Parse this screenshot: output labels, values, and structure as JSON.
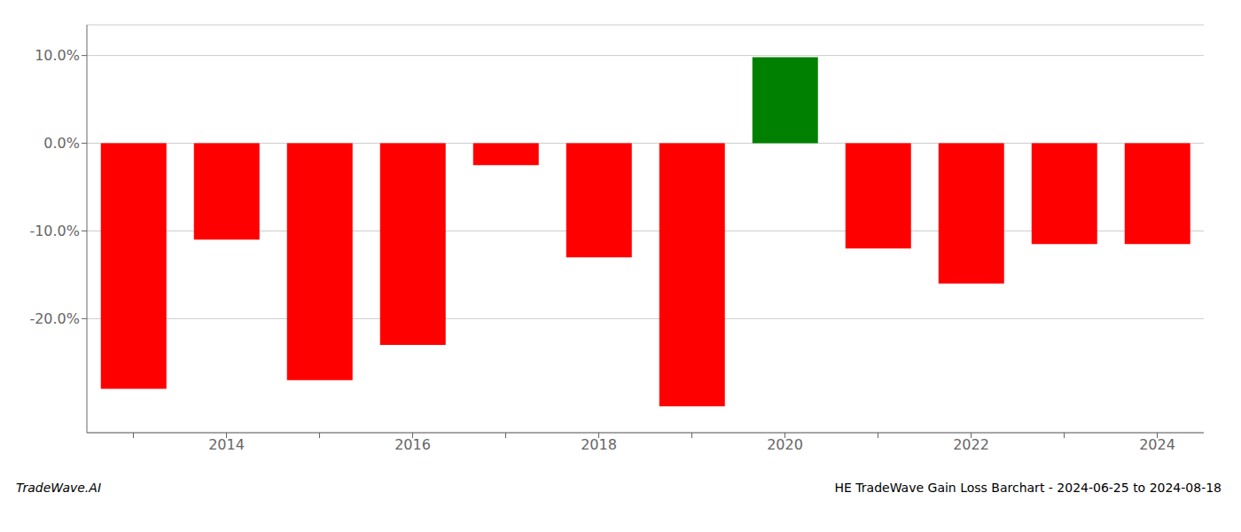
{
  "chart_data": {
    "type": "bar",
    "title": "HE TradeWave Gain Loss Barchart - 2024-06-25 to 2024-08-18",
    "annotations": [
      "TradeWave.AI"
    ],
    "categories": [
      null,
      "2014",
      null,
      "2016",
      null,
      "2018",
      null,
      "2020",
      null,
      "2022",
      null,
      "2024"
    ],
    "values": [
      -0.28,
      -0.11,
      -0.27,
      -0.23,
      -0.025,
      -0.13,
      -0.3,
      0.098,
      -0.12,
      -0.16,
      -0.115,
      -0.115
    ],
    "colors": [
      "red",
      "red",
      "red",
      "red",
      "red",
      "red",
      "red",
      "green",
      "red",
      "red",
      "red",
      "red"
    ],
    "ylim": [
      -0.33,
      0.135
    ],
    "yticks": [
      {
        "value": -0.2,
        "label": "-20.0%"
      },
      {
        "value": -0.1,
        "label": "-10.0%"
      },
      {
        "value": 0.0,
        "label": "0.0%"
      },
      {
        "value": 0.1,
        "label": "10.0%"
      }
    ],
    "grid": true
  }
}
